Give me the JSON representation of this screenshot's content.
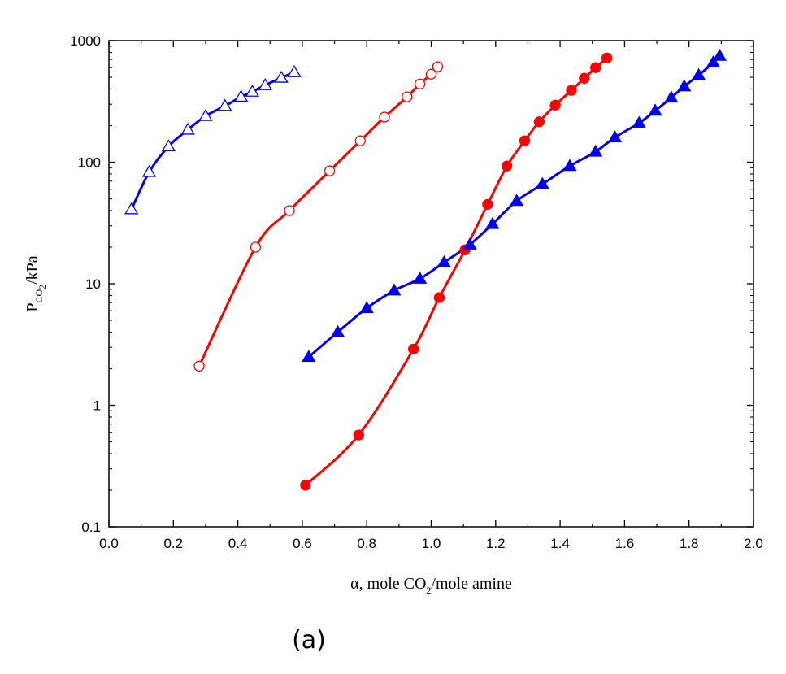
{
  "panel_label": "(a)",
  "chart_data": {
    "type": "scatter",
    "x_scale": "linear",
    "y_scale": "log",
    "xlim": [
      0.0,
      2.0
    ],
    "ylim": [
      0.1,
      1000
    ],
    "x_ticks": [
      "0.0",
      "0.2",
      "0.4",
      "0.6",
      "0.8",
      "1.0",
      "1.2",
      "1.4",
      "1.6",
      "1.8",
      "2.0"
    ],
    "y_ticks": [
      "0.1",
      "1",
      "10",
      "100",
      "1000"
    ],
    "xlabel": {
      "prefix": "α, mole CO",
      "sub": "2",
      "suffix": "/mole amine"
    },
    "ylabel": {
      "prefix": "P",
      "sub": "CO",
      "subsub": "2",
      "suffix": "/kPa"
    },
    "grid": false,
    "legend": "none",
    "series": [
      {
        "marker": "triangle-open",
        "color": "#0000ee",
        "x": [
          0.07,
          0.125,
          0.185,
          0.245,
          0.3,
          0.36,
          0.41,
          0.445,
          0.485,
          0.535,
          0.575
        ],
        "y": [
          41,
          83,
          135,
          185,
          240,
          290,
          345,
          380,
          430,
          495,
          550
        ]
      },
      {
        "marker": "circle-open",
        "color": "#ff0000",
        "x": [
          0.28,
          0.455,
          0.56,
          0.685,
          0.78,
          0.855,
          0.925,
          0.965,
          1.0,
          1.02
        ],
        "y": [
          2.1,
          20,
          40,
          85,
          150,
          235,
          345,
          440,
          530,
          610
        ]
      },
      {
        "marker": "circle-filled",
        "color": "#ff0000",
        "x": [
          0.61,
          0.775,
          0.945,
          1.025,
          1.105,
          1.175,
          1.235,
          1.29,
          1.335,
          1.385,
          1.435,
          1.475,
          1.51,
          1.545
        ],
        "y": [
          0.22,
          0.57,
          2.9,
          7.7,
          19,
          45,
          93,
          150,
          215,
          295,
          390,
          490,
          600,
          720
        ]
      },
      {
        "marker": "triangle-filled",
        "color": "#0000ee",
        "x": [
          0.62,
          0.71,
          0.8,
          0.885,
          0.965,
          1.04,
          1.12,
          1.19,
          1.265,
          1.345,
          1.43,
          1.51,
          1.57,
          1.645,
          1.695,
          1.745,
          1.785,
          1.83,
          1.875,
          1.895
        ],
        "y": [
          2.5,
          4.0,
          6.3,
          8.8,
          11,
          15,
          21,
          31,
          48,
          66,
          93,
          122,
          160,
          210,
          265,
          340,
          420,
          520,
          660,
          750
        ]
      }
    ]
  }
}
